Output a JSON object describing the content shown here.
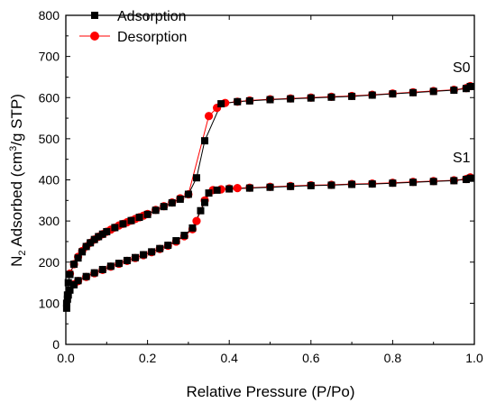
{
  "chart_data": {
    "type": "scatter",
    "xlabel": "Relative Pressure (P/Po)",
    "ylabel_parts": {
      "n": "N",
      "sub": "2",
      "mid": " Adsorbed (cm",
      "sup": "3",
      "end": "/g STP)"
    },
    "xlim": [
      0,
      1.0
    ],
    "ylim": [
      0,
      800
    ],
    "xticks": [
      "0.0",
      "0.2",
      "0.4",
      "0.6",
      "0.8",
      "1.0"
    ],
    "yticks": [
      "0",
      "100",
      "200",
      "300",
      "400",
      "500",
      "600",
      "700",
      "800"
    ],
    "grid": false,
    "legend": [
      {
        "label": "Adsorption",
        "color": "#000000",
        "marker": "square"
      },
      {
        "label": "Desorption",
        "color": "#ff0000",
        "marker": "circle"
      }
    ],
    "legend_position": "top-left",
    "curve_labels": [
      "S0",
      "S1"
    ],
    "series": [
      {
        "sample": "S0",
        "branch": "Adsorption",
        "color": "#000000",
        "marker": "square",
        "points": [
          [
            0.002,
            88
          ],
          [
            0.004,
            120
          ],
          [
            0.006,
            150
          ],
          [
            0.01,
            170
          ],
          [
            0.02,
            195
          ],
          [
            0.03,
            210
          ],
          [
            0.04,
            225
          ],
          [
            0.05,
            238
          ],
          [
            0.06,
            247
          ],
          [
            0.07,
            255
          ],
          [
            0.08,
            262
          ],
          [
            0.09,
            268
          ],
          [
            0.1,
            274
          ],
          [
            0.12,
            284
          ],
          [
            0.14,
            293
          ],
          [
            0.16,
            301
          ],
          [
            0.18,
            309
          ],
          [
            0.2,
            316
          ],
          [
            0.22,
            326
          ],
          [
            0.24,
            335
          ],
          [
            0.26,
            344
          ],
          [
            0.28,
            353
          ],
          [
            0.3,
            365
          ],
          [
            0.32,
            405
          ],
          [
            0.34,
            495
          ],
          [
            0.38,
            585
          ],
          [
            0.42,
            590
          ],
          [
            0.45,
            592
          ],
          [
            0.5,
            595
          ],
          [
            0.55,
            597
          ],
          [
            0.6,
            599
          ],
          [
            0.65,
            601
          ],
          [
            0.7,
            603
          ],
          [
            0.75,
            606
          ],
          [
            0.8,
            609
          ],
          [
            0.85,
            612
          ],
          [
            0.9,
            615
          ],
          [
            0.95,
            618
          ],
          [
            0.98,
            622
          ],
          [
            0.99,
            627
          ]
        ]
      },
      {
        "sample": "S0",
        "branch": "Desorption",
        "color": "#ff0000",
        "marker": "circle",
        "points": [
          [
            0.99,
            628
          ],
          [
            0.98,
            623
          ],
          [
            0.95,
            619
          ],
          [
            0.9,
            616
          ],
          [
            0.85,
            613
          ],
          [
            0.8,
            610
          ],
          [
            0.75,
            607
          ],
          [
            0.7,
            604
          ],
          [
            0.65,
            602
          ],
          [
            0.6,
            600
          ],
          [
            0.55,
            598
          ],
          [
            0.5,
            596
          ],
          [
            0.45,
            593
          ],
          [
            0.42,
            590
          ],
          [
            0.39,
            587
          ],
          [
            0.37,
            575
          ],
          [
            0.35,
            555
          ],
          [
            0.3,
            365
          ],
          [
            0.28,
            355
          ],
          [
            0.26,
            345
          ],
          [
            0.24,
            336
          ],
          [
            0.22,
            327
          ],
          [
            0.2,
            317
          ],
          [
            0.19,
            313
          ],
          [
            0.18,
            309
          ],
          [
            0.17,
            305
          ],
          [
            0.16,
            301
          ],
          [
            0.15,
            297
          ],
          [
            0.14,
            293
          ],
          [
            0.13,
            289
          ],
          [
            0.12,
            284
          ],
          [
            0.11,
            279
          ],
          [
            0.1,
            274
          ],
          [
            0.09,
            268
          ],
          [
            0.08,
            262
          ],
          [
            0.07,
            255
          ],
          [
            0.06,
            247
          ],
          [
            0.05,
            238
          ],
          [
            0.04,
            227
          ],
          [
            0.03,
            213
          ],
          [
            0.02,
            195
          ],
          [
            0.01,
            172
          ]
        ]
      },
      {
        "sample": "S1",
        "branch": "Adsorption",
        "color": "#000000",
        "marker": "square",
        "points": [
          [
            0.002,
            100
          ],
          [
            0.004,
            110
          ],
          [
            0.006,
            120
          ],
          [
            0.01,
            132
          ],
          [
            0.02,
            145
          ],
          [
            0.03,
            155
          ],
          [
            0.05,
            165
          ],
          [
            0.07,
            174
          ],
          [
            0.09,
            182
          ],
          [
            0.11,
            190
          ],
          [
            0.13,
            197
          ],
          [
            0.15,
            204
          ],
          [
            0.17,
            211
          ],
          [
            0.19,
            218
          ],
          [
            0.21,
            225
          ],
          [
            0.23,
            233
          ],
          [
            0.25,
            241
          ],
          [
            0.27,
            252
          ],
          [
            0.29,
            265
          ],
          [
            0.31,
            283
          ],
          [
            0.33,
            325
          ],
          [
            0.34,
            345
          ],
          [
            0.35,
            368
          ],
          [
            0.37,
            375
          ],
          [
            0.4,
            378
          ],
          [
            0.45,
            380
          ],
          [
            0.5,
            382
          ],
          [
            0.55,
            384
          ],
          [
            0.6,
            386
          ],
          [
            0.65,
            387
          ],
          [
            0.7,
            389
          ],
          [
            0.75,
            390
          ],
          [
            0.8,
            392
          ],
          [
            0.85,
            394
          ],
          [
            0.9,
            396
          ],
          [
            0.95,
            398
          ],
          [
            0.98,
            401
          ],
          [
            0.99,
            404
          ]
        ]
      },
      {
        "sample": "S1",
        "branch": "Desorption",
        "color": "#ff0000",
        "marker": "circle",
        "points": [
          [
            0.99,
            406
          ],
          [
            0.98,
            402
          ],
          [
            0.95,
            399
          ],
          [
            0.9,
            397
          ],
          [
            0.85,
            395
          ],
          [
            0.8,
            393
          ],
          [
            0.75,
            391
          ],
          [
            0.7,
            390
          ],
          [
            0.65,
            388
          ],
          [
            0.6,
            387
          ],
          [
            0.55,
            385
          ],
          [
            0.5,
            383
          ],
          [
            0.45,
            381
          ],
          [
            0.42,
            380
          ],
          [
            0.4,
            379
          ],
          [
            0.38,
            377
          ],
          [
            0.36,
            375
          ],
          [
            0.34,
            350
          ],
          [
            0.32,
            300
          ],
          [
            0.31,
            280
          ],
          [
            0.29,
            263
          ],
          [
            0.27,
            250
          ],
          [
            0.25,
            240
          ],
          [
            0.23,
            232
          ],
          [
            0.21,
            224
          ],
          [
            0.19,
            217
          ],
          [
            0.17,
            210
          ],
          [
            0.15,
            203
          ],
          [
            0.13,
            196
          ],
          [
            0.11,
            189
          ],
          [
            0.09,
            181
          ],
          [
            0.07,
            173
          ],
          [
            0.05,
            164
          ],
          [
            0.03,
            154
          ],
          [
            0.02,
            146
          ]
        ]
      }
    ]
  }
}
